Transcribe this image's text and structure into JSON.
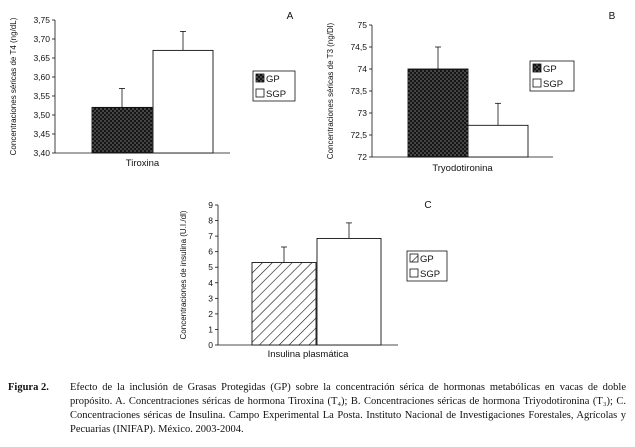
{
  "chart_data": [
    {
      "id": "A",
      "type": "bar",
      "panel_letter": "A",
      "categories": [
        "Tiroxina"
      ],
      "xlabel": "Tiroxina",
      "ylabel": "Concentraciones séricas de T4 (ng/dL)",
      "ylim": [
        3.4,
        3.75
      ],
      "yticks": [
        "3,75",
        "3,70",
        "3,65",
        "3,60",
        "3,55",
        "3,50",
        "3,45",
        "3,40"
      ],
      "yticks_values": [
        3.75,
        3.7,
        3.65,
        3.6,
        3.55,
        3.5,
        3.45,
        3.4
      ],
      "series": [
        {
          "name": "GP",
          "values": [
            3.52
          ],
          "error": [
            0.05
          ],
          "pattern": "dots"
        },
        {
          "name": "SGP",
          "values": [
            3.67
          ],
          "error": [
            0.05
          ],
          "pattern": "white"
        }
      ],
      "legend_position": "right"
    },
    {
      "id": "B",
      "type": "bar",
      "panel_letter": "B",
      "categories": [
        "Tryodotironina"
      ],
      "xlabel": "Tryodotironina",
      "ylabel": "Concentraciones séricas de T3 (ng/Dl)",
      "ylim": [
        72,
        75
      ],
      "yticks": [
        "75",
        "74,5",
        "74",
        "73,5",
        "73",
        "72,5",
        "72"
      ],
      "yticks_values": [
        75,
        74.5,
        74,
        73.5,
        73,
        72.5,
        72
      ],
      "series": [
        {
          "name": "GP",
          "values": [
            74.0
          ],
          "error": [
            0.5
          ],
          "pattern": "dots"
        },
        {
          "name": "SGP",
          "values": [
            72.72
          ],
          "error": [
            0.5
          ],
          "pattern": "white"
        }
      ],
      "legend_position": "right"
    },
    {
      "id": "C",
      "type": "bar",
      "panel_letter": "C",
      "categories": [
        "Insulina plasmática"
      ],
      "xlabel": "Insulina plasmática",
      "ylabel": "Concentraciones de insulina (U.I./dl)",
      "ylim": [
        0,
        9
      ],
      "yticks": [
        "9",
        "8",
        "7",
        "6",
        "5",
        "4",
        "3",
        "2",
        "1",
        "0"
      ],
      "yticks_values": [
        9,
        8,
        7,
        6,
        5,
        4,
        3,
        2,
        1,
        0
      ],
      "series": [
        {
          "name": "GP",
          "values": [
            5.3
          ],
          "error": [
            1.0
          ],
          "pattern": "hatch"
        },
        {
          "name": "SGP",
          "values": [
            6.85
          ],
          "error": [
            1.0
          ],
          "pattern": "white"
        }
      ],
      "legend_position": "right"
    }
  ],
  "caption": {
    "label": "Figura 2.",
    "text": "Efecto de la inclusión de Grasas Protegidas (GP) sobre la concentración sérica de hormonas metabólicas en vacas de doble propósito. A. Concentraciones séricas de hormona Tiroxina (T₄); B. Concentraciones séricas de hormona Triyodotironina (T₃); C. Concentraciones séricas de Insulina. Campo Experimental La Posta. Instituto Nacional de Investigaciones Forestales, Agrícolas y Pecuarias (INIFAP). México. 2003-2004."
  },
  "colors": {
    "axis": "#111111",
    "bar_fill_white": "#ffffff",
    "bar_fill_dots": "#111111"
  }
}
